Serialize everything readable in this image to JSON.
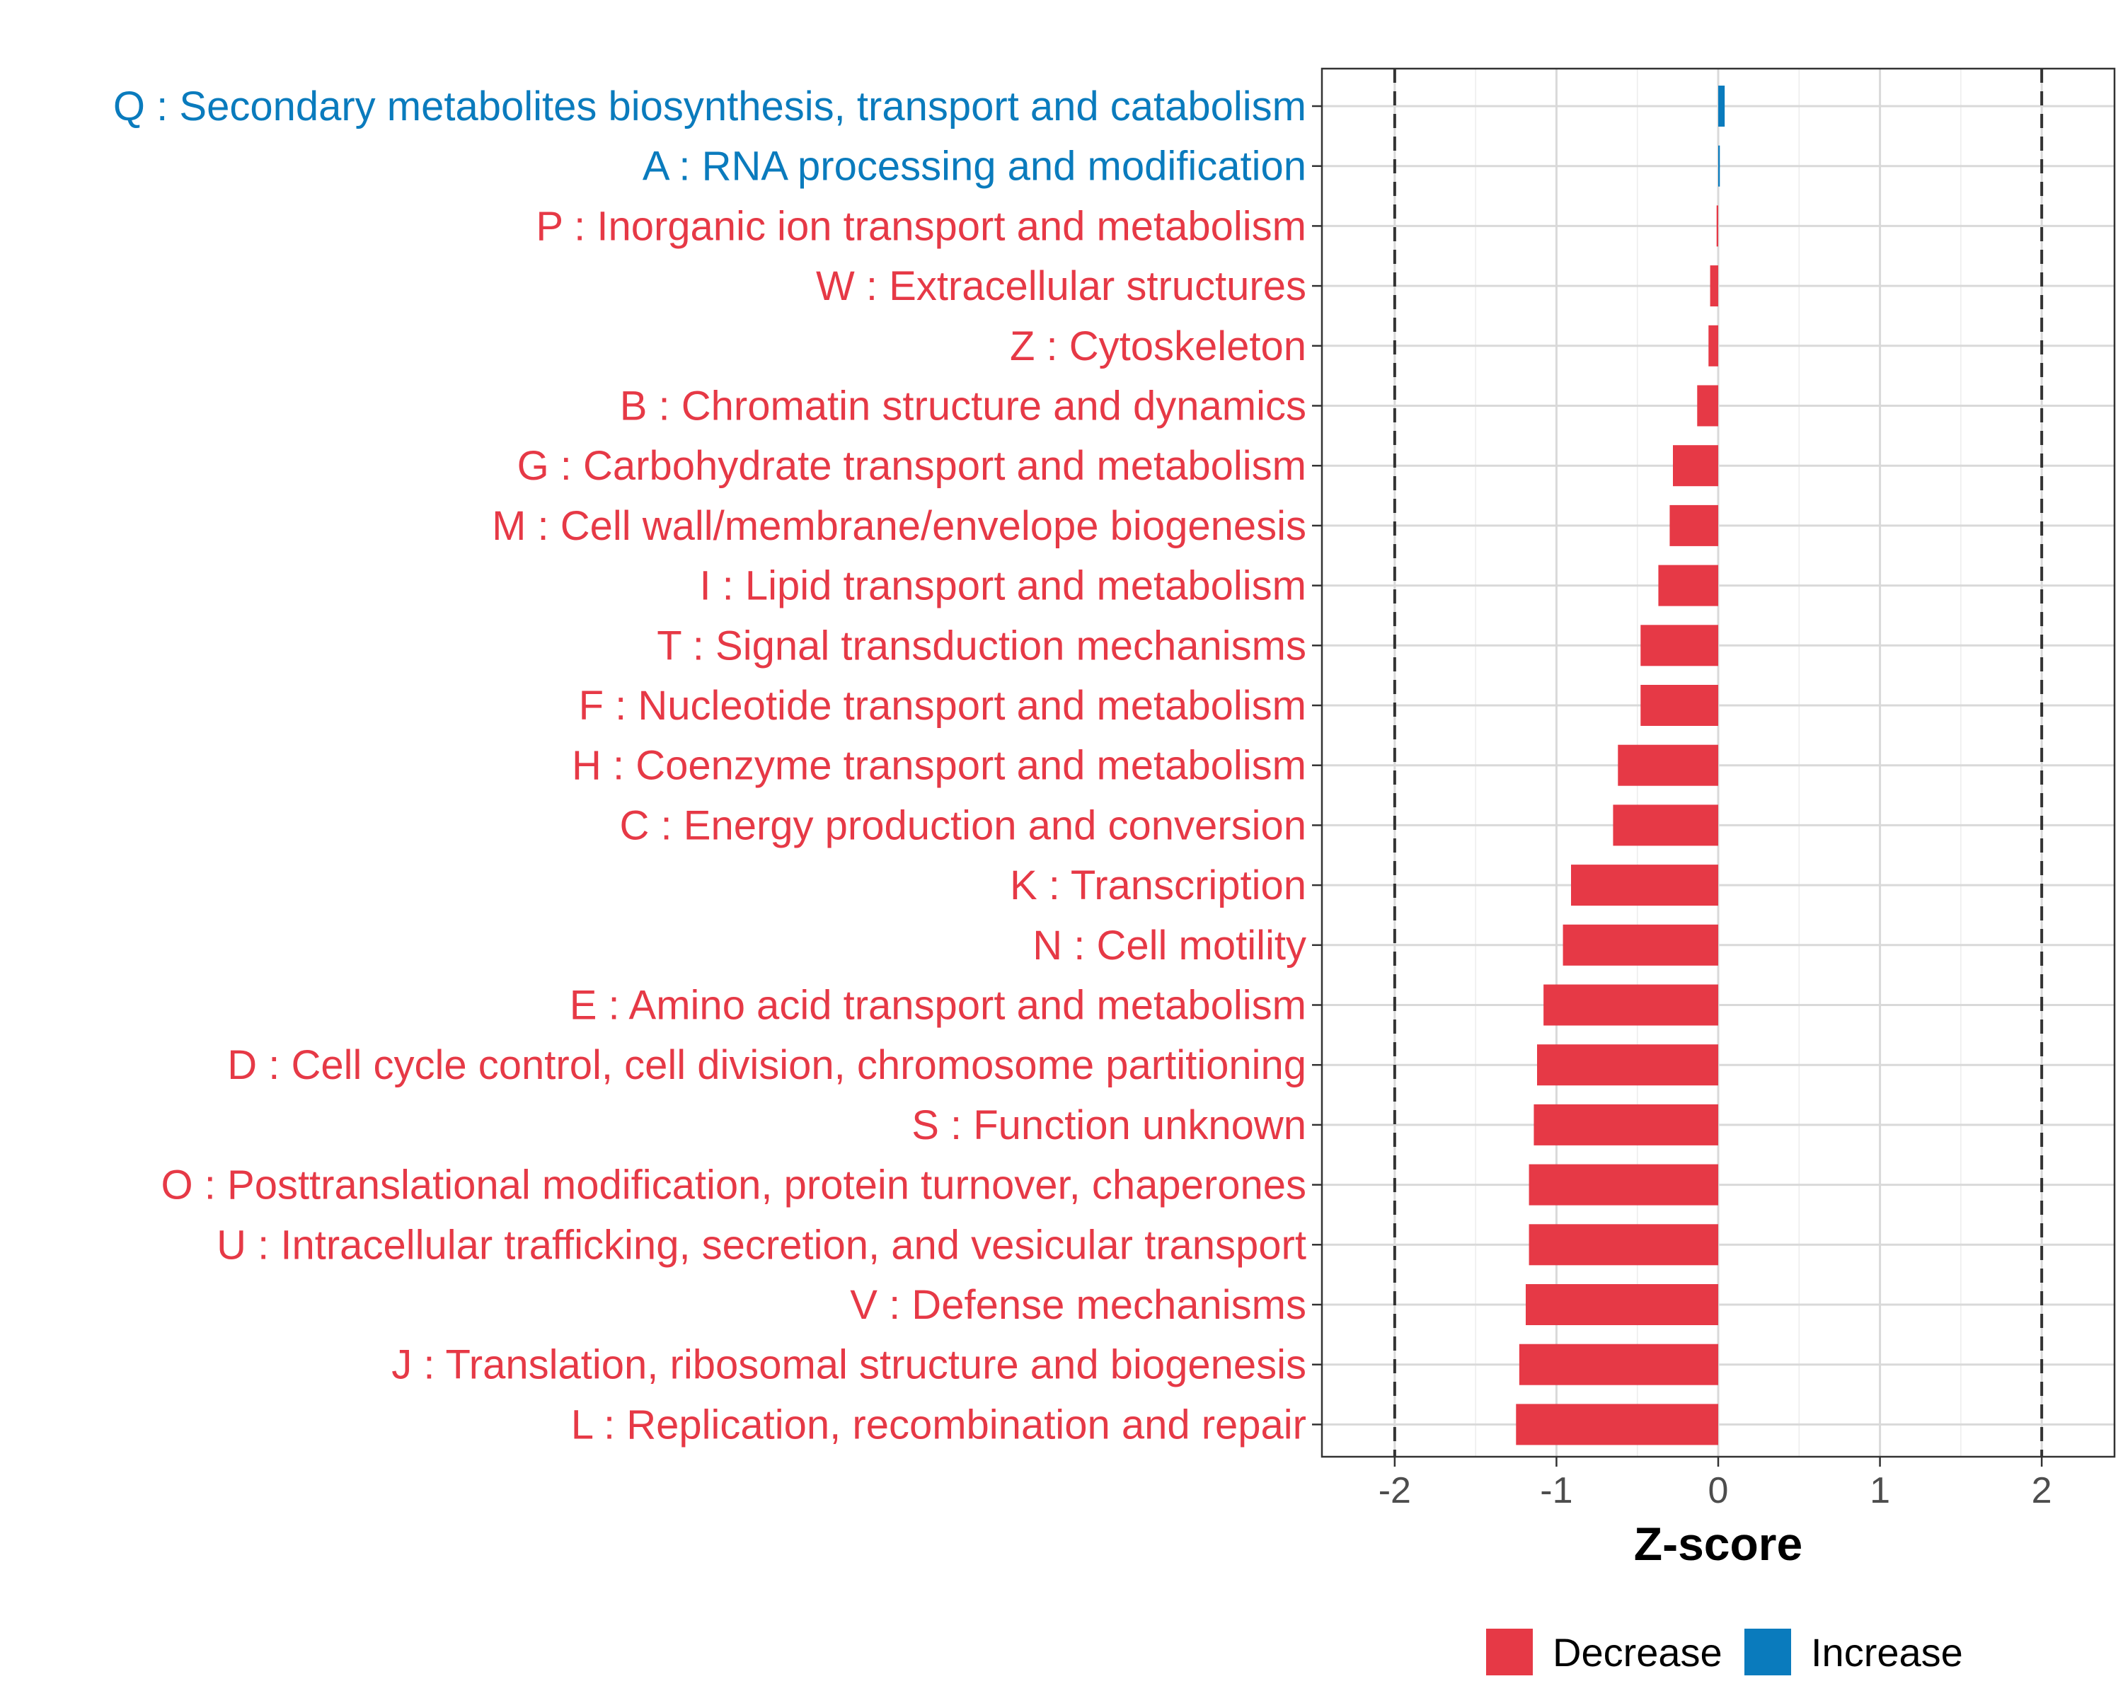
{
  "chart_data": {
    "type": "bar",
    "orientation": "horizontal",
    "title": "",
    "xlabel": "Z-score",
    "ylabel": "",
    "xlim": [
      -2.45,
      2.45
    ],
    "xticks": [
      -2,
      -1,
      0,
      1,
      2
    ],
    "xtick_labels": [
      "-2",
      "-1",
      "0",
      "1",
      "2"
    ],
    "reference_lines": [
      -2,
      2
    ],
    "grid": true,
    "legend_position": "bottom",
    "colors": {
      "Decrease": "#e63946",
      "Increase": "#0a7bbd"
    },
    "categories": [
      "Q : Secondary metabolites biosynthesis, transport and catabolism",
      "A : RNA processing and modification",
      "P : Inorganic ion transport and metabolism",
      "W : Extracellular structures",
      "Z : Cytoskeleton",
      "B : Chromatin structure and dynamics",
      "G : Carbohydrate transport and metabolism",
      "M : Cell wall/membrane/envelope biogenesis",
      "I : Lipid transport and metabolism",
      "T : Signal transduction mechanisms",
      "F : Nucleotide transport and metabolism",
      "H : Coenzyme transport and metabolism",
      "C : Energy production and conversion",
      "K : Transcription",
      "N : Cell motility",
      "E : Amino acid transport and metabolism",
      "D : Cell cycle control, cell division, chromosome partitioning",
      "S : Function unknown",
      "O : Posttranslational modification, protein turnover, chaperones",
      "U : Intracellular trafficking, secretion, and vesicular transport",
      "V : Defense mechanisms",
      "J : Translation, ribosomal structure and biogenesis",
      "L : Replication, recombination and repair"
    ],
    "values": [
      0.04,
      0.01,
      -0.01,
      -0.05,
      -0.06,
      -0.13,
      -0.28,
      -0.3,
      -0.37,
      -0.48,
      -0.48,
      -0.62,
      -0.65,
      -0.91,
      -0.96,
      -1.08,
      -1.12,
      -1.14,
      -1.17,
      -1.17,
      -1.19,
      -1.23,
      -1.25
    ],
    "groups": [
      "Increase",
      "Increase",
      "Decrease",
      "Decrease",
      "Decrease",
      "Decrease",
      "Decrease",
      "Decrease",
      "Decrease",
      "Decrease",
      "Decrease",
      "Decrease",
      "Decrease",
      "Decrease",
      "Decrease",
      "Decrease",
      "Decrease",
      "Decrease",
      "Decrease",
      "Decrease",
      "Decrease",
      "Decrease",
      "Decrease"
    ],
    "legend": [
      "Decrease",
      "Increase"
    ]
  }
}
